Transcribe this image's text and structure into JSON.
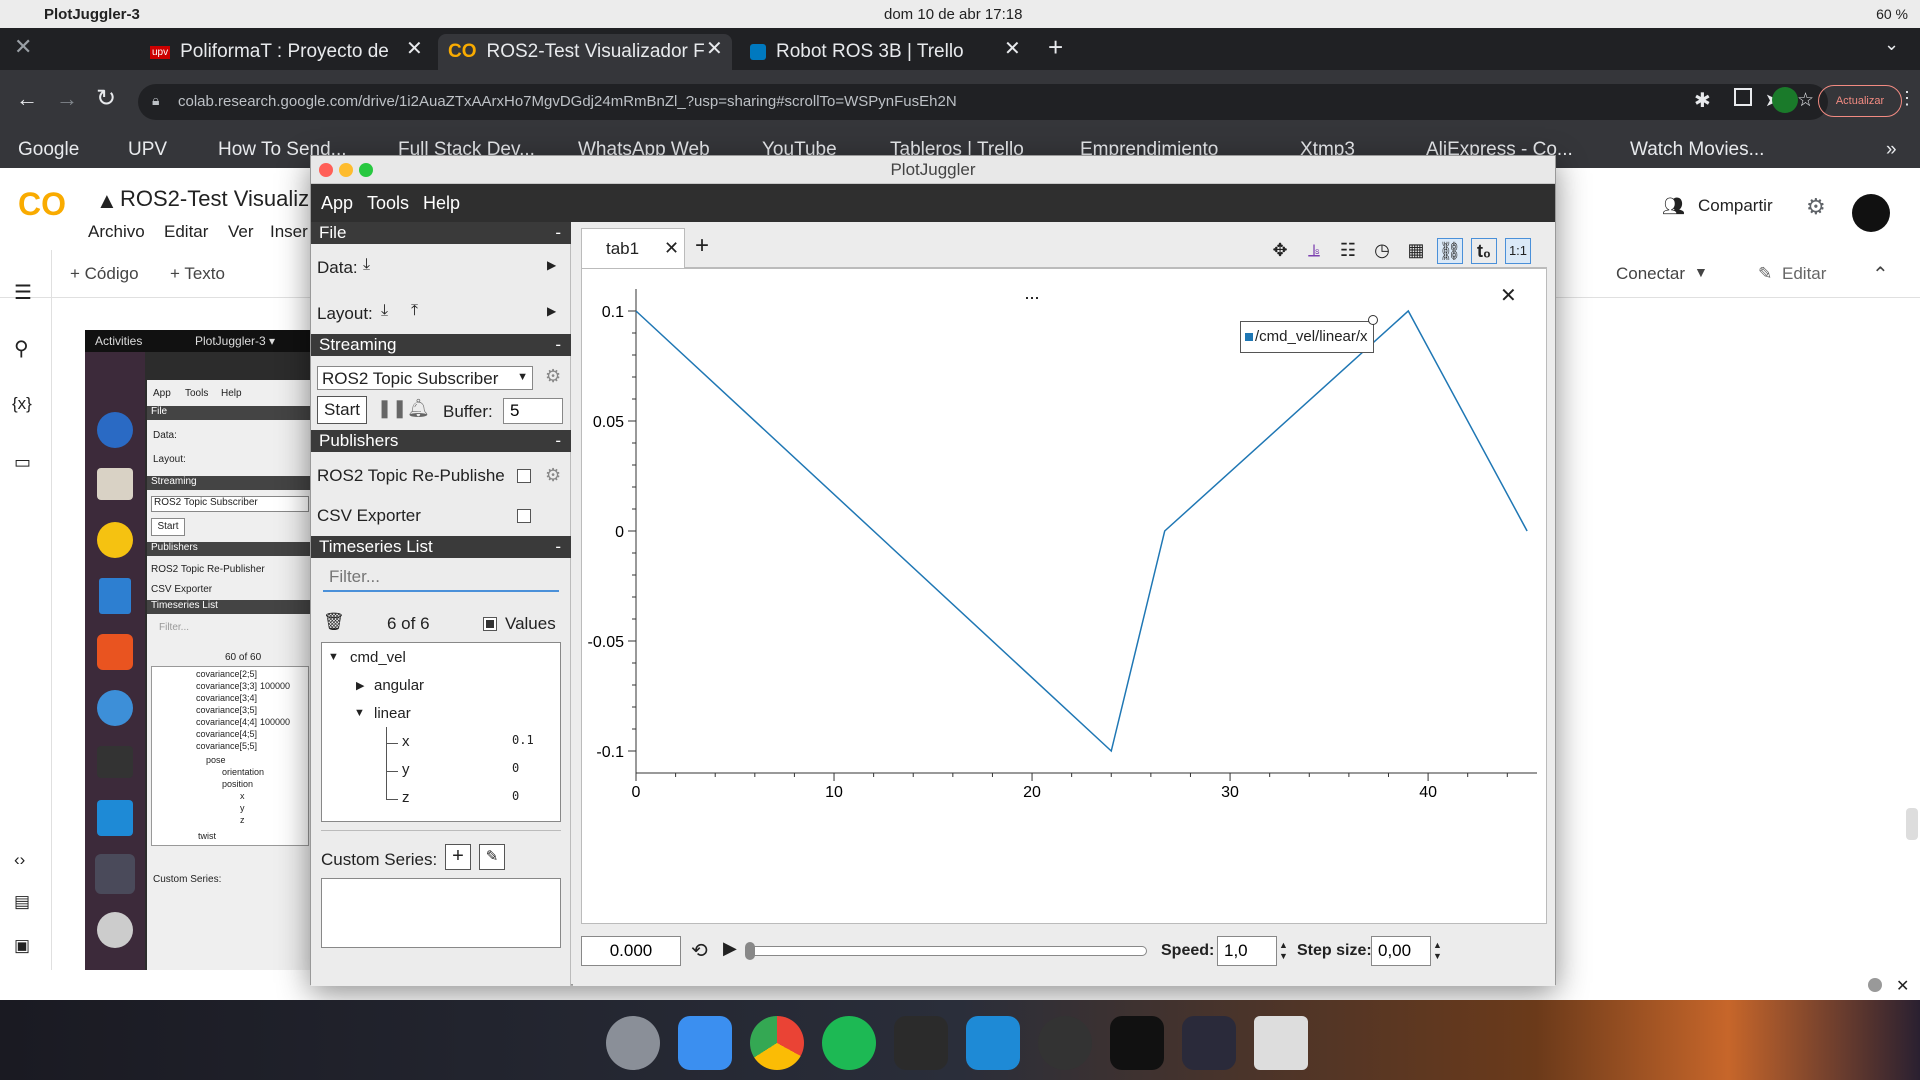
{
  "mac": {
    "app": "PlotJuggler-3",
    "clock": "dom 10 de abr  17:18",
    "battery": "60 %"
  },
  "chrome": {
    "tabs": [
      {
        "label": "PoliformaT : Proyecto de",
        "active": false
      },
      {
        "label": "ROS2-Test Visualizador F",
        "active": true
      },
      {
        "label": "Robot ROS 3B | Trello",
        "active": false
      }
    ],
    "url": "colab.research.google.com/drive/1i2AuaZTxAArxHo7MgvDGdj24mRmBnZl_?usp=sharing#scrollTo=WSPynFusEh2N",
    "update_label": "Actualizar",
    "bookmarks": [
      "Google",
      "UPV",
      "How To Send...",
      "Full Stack Dev...",
      "WhatsApp Web",
      "YouTube",
      "Tableros | Trello",
      "Emprendimiento",
      "Xtmp3",
      "AliExpress - Co...",
      "Watch Movies..."
    ]
  },
  "colab": {
    "title": "ROS2-Test Visualiz",
    "menu": [
      "Archivo",
      "Editar",
      "Ver",
      "Inser"
    ],
    "toolbar": {
      "code": "+ Código",
      "text": "+ Texto",
      "connect": "Conectar",
      "edit": "Editar"
    },
    "share": "Compartir"
  },
  "vm": {
    "activities": "Activities",
    "app": "PlotJuggler-3 ▾",
    "menu": [
      "App",
      "Tools",
      "Help"
    ],
    "file": "File",
    "data": "Data:",
    "layout": "Layout:",
    "streaming": "Streaming",
    "subscriber": "ROS2 Topic Subscriber",
    "start": "Start",
    "publishers": "Publishers",
    "republisher": "ROS2 Topic Re-Publisher",
    "csv": "CSV Exporter",
    "timeseries": "Timeseries List",
    "filter": "Filter...",
    "count": "60 of 60",
    "tree": [
      "covariance[2;5]",
      "covariance[3;3]",
      "covariance[3;4]",
      "covariance[3;5]",
      "covariance[4;4]",
      "covariance[4;5]",
      "covariance[5;5]",
      "pose",
      "orientation",
      "position",
      "x",
      "y",
      "z",
      "twist"
    ],
    "tree_values": [
      "100000",
      "100000"
    ],
    "custom": "Custom Series:"
  },
  "pj": {
    "title": "PlotJuggler",
    "menu": [
      "App",
      "Tools",
      "Help"
    ],
    "file_section": "File",
    "data_label": "Data:",
    "layout_label": "Layout:",
    "streaming_section": "Streaming",
    "subscriber": "ROS2 Topic Subscriber",
    "start": "Start",
    "buffer_label": "Buffer:",
    "buffer_value": "5",
    "publishers_section": "Publishers",
    "republisher": "ROS2 Topic Re-Publishe",
    "csv": "CSV Exporter",
    "timeseries_section": "Timeseries List",
    "filter_placeholder": "Filter...",
    "count": "6 of 6",
    "values_label": "Values",
    "tree": {
      "root": "cmd_vel",
      "angular": "angular",
      "linear": "linear",
      "leaves": [
        {
          "name": "x",
          "value": "0.1"
        },
        {
          "name": "y",
          "value": "0"
        },
        {
          "name": "z",
          "value": "0"
        }
      ]
    },
    "custom_series": "Custom Series:",
    "tab": "tab1",
    "plot_title": "...",
    "time_value": "0.000",
    "speed_label": "Speed:",
    "speed_value": "1,0",
    "step_label": "Step size:",
    "step_value": "0,00"
  },
  "chart_data": {
    "type": "line",
    "series": [
      {
        "name": "/cmd_vel/linear/x",
        "color": "#1f77b4",
        "x": [
          0,
          24,
          26.7,
          39,
          45
        ],
        "y": [
          0.1,
          -0.1,
          0,
          0.1,
          0
        ]
      }
    ],
    "xlim": [
      0,
      45.5
    ],
    "ylim": [
      -0.11,
      0.11
    ],
    "xticks": [
      0,
      10,
      20,
      30,
      40
    ],
    "yticks": [
      0.1,
      0.05,
      0,
      -0.05,
      -0.1
    ],
    "ytick_labels": [
      "0.1",
      "0.05",
      "0",
      "-0.05",
      "-0.1"
    ],
    "legend": "top-right"
  }
}
